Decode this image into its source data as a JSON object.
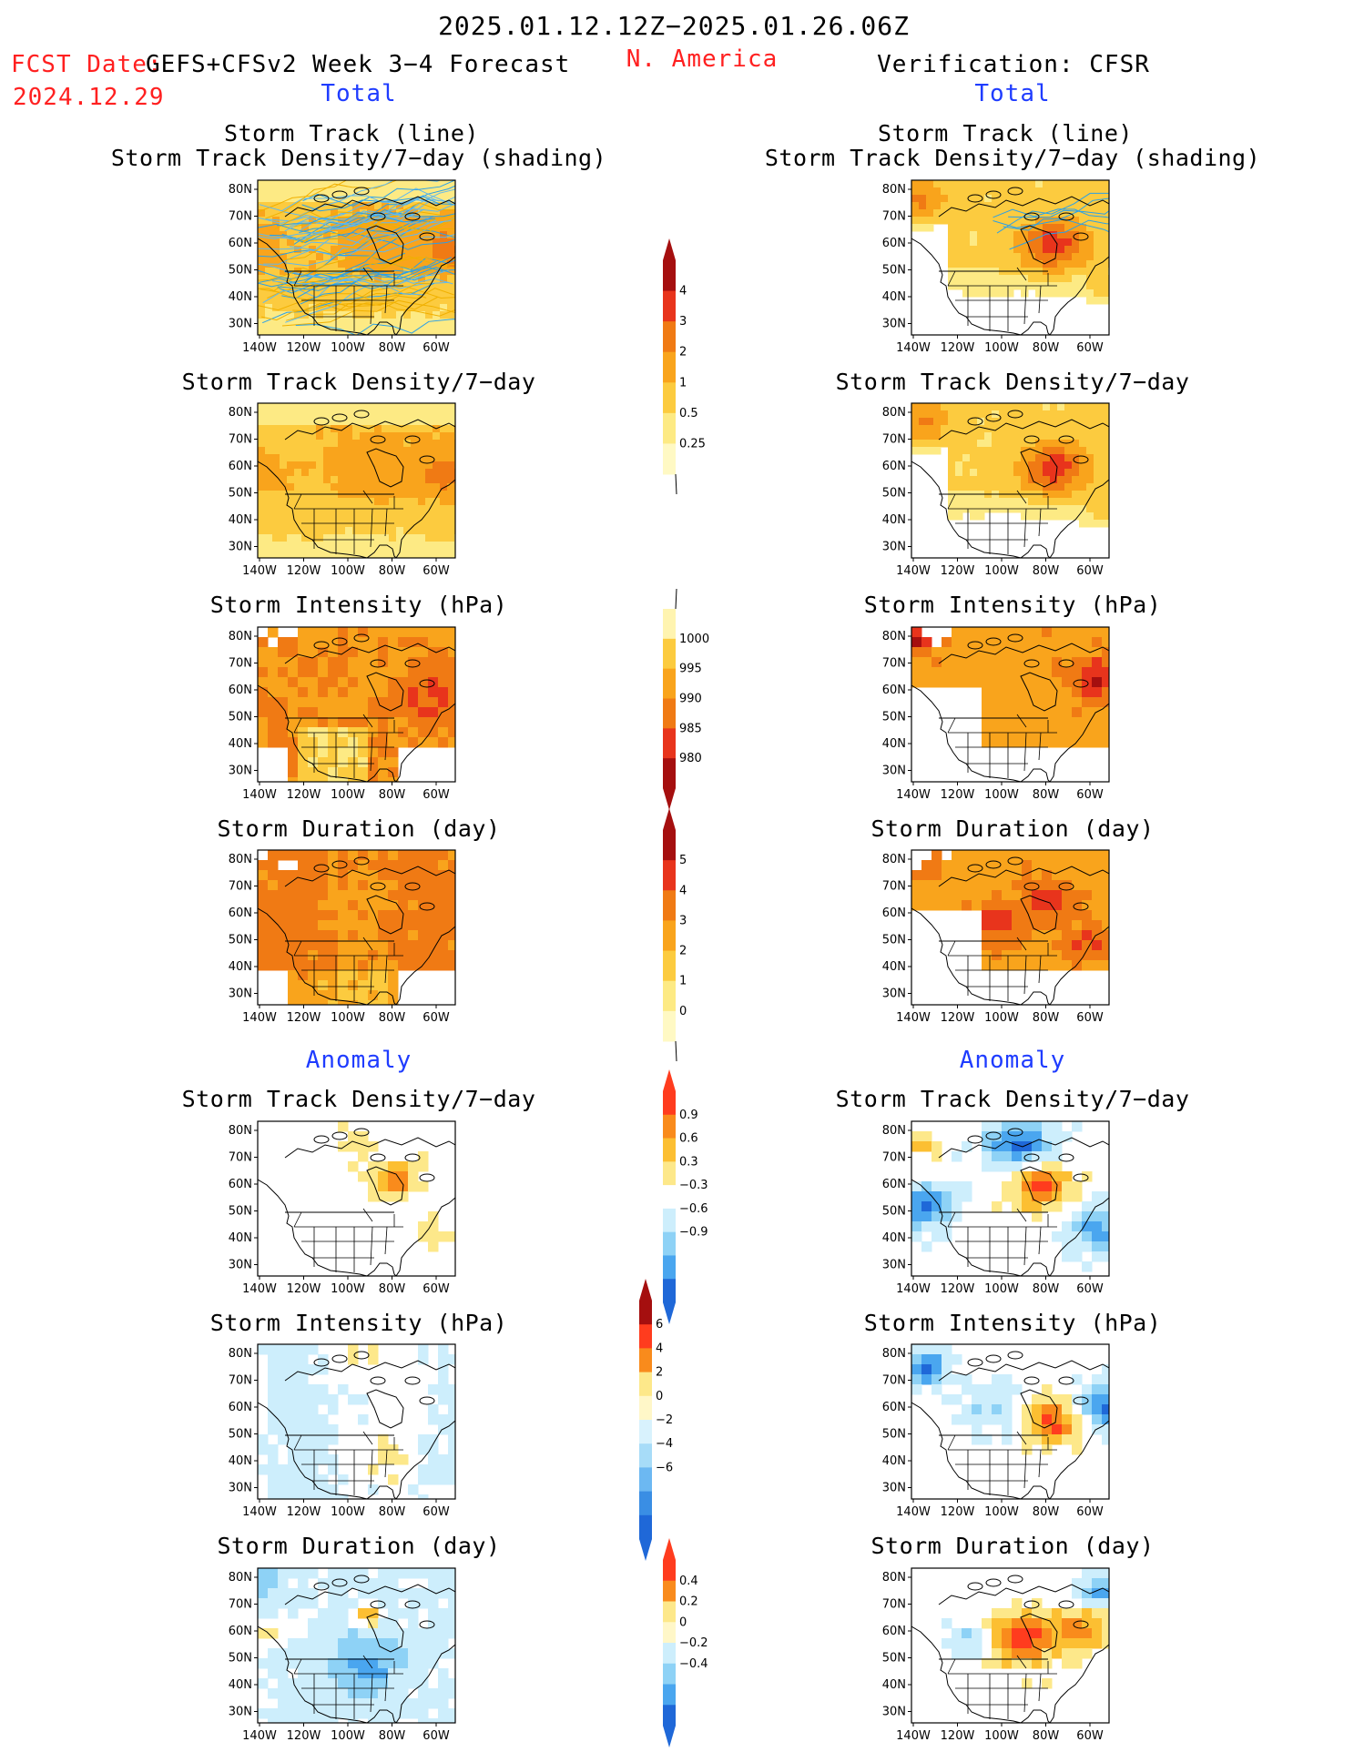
{
  "header": {
    "date_range": "2025.01.12.12Z−2025.01.26.06Z",
    "fcst_label": "FCST Date:",
    "fcst_date": "2024.12.29",
    "model": "GEFS+CFSv2 Week 3−4 Forecast",
    "region": "N. America",
    "verification": "Verification: CFSR"
  },
  "sections": {
    "total": "Total",
    "anomaly": "Anomaly"
  },
  "panel_titles": {
    "track_line": "Storm Track (line)",
    "track_shading": "Storm Track Density/7−day (shading)",
    "density": "Storm Track Density/7−day",
    "intensity": "Storm Intensity (hPa)",
    "duration": "Storm Duration (day)"
  },
  "axes": {
    "lat_labels": [
      "80N",
      "70N",
      "60N",
      "50N",
      "40N",
      "30N"
    ],
    "lon_labels": [
      "140W",
      "120W",
      "100W",
      "80W",
      "60W"
    ]
  },
  "colorbars": [
    {
      "name": "density-total",
      "labels": [
        "4",
        "3",
        "2",
        "1",
        "0.5",
        "0.25"
      ],
      "colors": [
        "#a50f0f",
        "#e8341c",
        "#f07a14",
        "#f9a41c",
        "#fccb3f",
        "#fdea84",
        "#fff9c4"
      ],
      "up": true,
      "down": false,
      "tail": "bottom"
    },
    {
      "name": "intensity-total",
      "labels": [
        "1000",
        "995",
        "990",
        "985",
        "980"
      ],
      "colors": [
        "#fff4b0",
        "#fccb3f",
        "#f9a41c",
        "#f07a14",
        "#e8341c",
        "#a50f0f"
      ],
      "up": false,
      "down": true,
      "tail": "top"
    },
    {
      "name": "duration-total",
      "labels": [
        "5",
        "4",
        "3",
        "2",
        "1",
        "0"
      ],
      "colors": [
        "#a50f0f",
        "#e8341c",
        "#f07a14",
        "#f9a41c",
        "#fccb3f",
        "#fdea84",
        "#fff9c4"
      ],
      "up": true,
      "down": false,
      "tail": "bottom"
    },
    {
      "name": "density-anom",
      "labels": [
        "0.9",
        "0.6",
        "0.3",
        "−0.3",
        "−0.6",
        "−0.9"
      ],
      "colors": [
        "#ff3c1e",
        "#f98b1c",
        "#fcbf32",
        "#fde88a",
        "#ffffff",
        "#cdeefc",
        "#8ed2f6",
        "#4aa6ef",
        "#1f68d8"
      ],
      "up": true,
      "down": true
    },
    {
      "name": "intensity-anom",
      "labels": [
        "6",
        "4",
        "2",
        "0",
        "−2",
        "−4",
        "−6"
      ],
      "colors": [
        "#a50f0f",
        "#ff3c1e",
        "#f98b1c",
        "#fde88a",
        "#fff7c8",
        "#d8f2fd",
        "#a7dcf8",
        "#6cb8f2",
        "#3a8ee4",
        "#1f68d8"
      ],
      "up": true,
      "down": true
    },
    {
      "name": "duration-anom",
      "labels": [
        "0.4",
        "0.2",
        "0",
        "−0.2",
        "−0.4"
      ],
      "colors": [
        "#ff3c1e",
        "#f98b1c",
        "#fde88a",
        "#fff7c8",
        "#cdeefc",
        "#8ed2f6",
        "#4aa6ef",
        "#1f68d8"
      ],
      "up": true,
      "down": true
    }
  ]
}
